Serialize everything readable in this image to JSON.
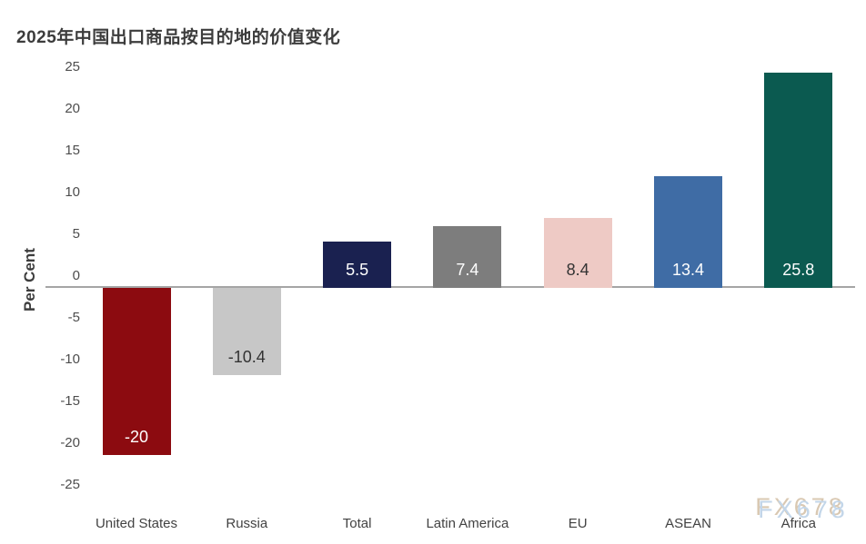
{
  "page": {
    "background": "#ffffff"
  },
  "watermark": {
    "text": "FX678",
    "color": "#c3d6e9",
    "shadow_color": "#d9c8b2"
  },
  "chart_data": {
    "type": "bar",
    "title": "2025年中国出口商品按目的地的价值变化",
    "xlabel": "",
    "ylabel": "Per Cent",
    "categories": [
      "United States",
      "Russia",
      "Total",
      "Latin America",
      "EU",
      "ASEAN",
      "Africa"
    ],
    "values": [
      -20,
      -10.4,
      5.5,
      7.4,
      8.4,
      13.4,
      25.8
    ],
    "value_labels": [
      "-20",
      "-10.4",
      "5.5",
      "7.4",
      "8.4",
      "13.4",
      "25.8"
    ],
    "bar_colors": [
      "#8c0b10",
      "#c7c7c7",
      "#1a2150",
      "#7d7d7d",
      "#eecac5",
      "#3f6ca5",
      "#0b5a50"
    ],
    "value_label_colors": [
      "#ffffff",
      "#333333",
      "#ffffff",
      "#ffffff",
      "#333333",
      "#ffffff",
      "#ffffff"
    ],
    "yticks": [
      25,
      20,
      15,
      10,
      5,
      0,
      -5,
      -10,
      -15,
      -20,
      -25
    ],
    "ylim": [
      -25,
      25
    ],
    "grid": false,
    "legend": false,
    "axis_line_color": "#a5a5a5",
    "title_color": "#3c3c3c",
    "tick_label_color": "#4d4d4d",
    "layout": {
      "zeroY": 317,
      "pxPerUnit": 9.2,
      "firstCenter": 150,
      "step": 121.3,
      "barWidth": 75,
      "tickLabelShift": -13,
      "valueLabelLift": 31
    }
  }
}
